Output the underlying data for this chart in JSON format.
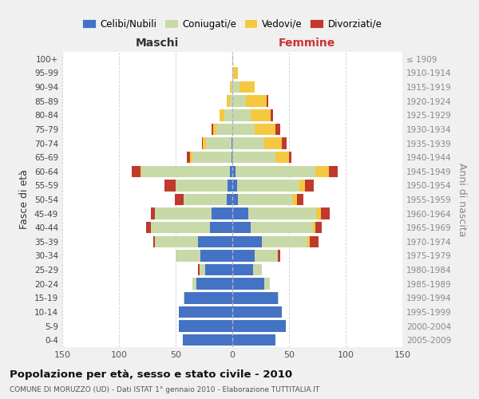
{
  "age_groups": [
    "0-4",
    "5-9",
    "10-14",
    "15-19",
    "20-24",
    "25-29",
    "30-34",
    "35-39",
    "40-44",
    "45-49",
    "50-54",
    "55-59",
    "60-64",
    "65-69",
    "70-74",
    "75-79",
    "80-84",
    "85-89",
    "90-94",
    "95-99",
    "100+"
  ],
  "birth_years": [
    "2005-2009",
    "2000-2004",
    "1995-1999",
    "1990-1994",
    "1985-1989",
    "1980-1984",
    "1975-1979",
    "1970-1974",
    "1965-1969",
    "1960-1964",
    "1955-1959",
    "1950-1954",
    "1945-1949",
    "1940-1944",
    "1935-1939",
    "1930-1934",
    "1925-1929",
    "1920-1924",
    "1915-1919",
    "1910-1914",
    "≤ 1909"
  ],
  "male": {
    "celibi": [
      44,
      47,
      47,
      42,
      32,
      24,
      28,
      30,
      20,
      18,
      5,
      4,
      2,
      1,
      1,
      0,
      0,
      0,
      0,
      0,
      0
    ],
    "coniugati": [
      0,
      0,
      0,
      1,
      3,
      5,
      22,
      38,
      52,
      50,
      38,
      46,
      78,
      34,
      22,
      14,
      7,
      2,
      1,
      0,
      0
    ],
    "vedovi": [
      0,
      0,
      0,
      0,
      0,
      0,
      0,
      0,
      0,
      0,
      0,
      0,
      1,
      2,
      3,
      3,
      4,
      3,
      1,
      0,
      0
    ],
    "divorziati": [
      0,
      0,
      0,
      0,
      0,
      1,
      0,
      2,
      4,
      4,
      8,
      10,
      8,
      3,
      1,
      1,
      0,
      0,
      0,
      0,
      0
    ]
  },
  "female": {
    "nubili": [
      38,
      47,
      44,
      40,
      28,
      18,
      20,
      26,
      16,
      14,
      5,
      4,
      3,
      0,
      0,
      0,
      0,
      0,
      0,
      0,
      0
    ],
    "coniugate": [
      0,
      0,
      0,
      1,
      5,
      8,
      20,
      40,
      55,
      60,
      48,
      55,
      70,
      38,
      28,
      20,
      16,
      12,
      6,
      1,
      0
    ],
    "vedove": [
      0,
      0,
      0,
      0,
      0,
      0,
      0,
      2,
      2,
      4,
      4,
      5,
      12,
      12,
      16,
      18,
      18,
      18,
      14,
      4,
      0
    ],
    "divorziate": [
      0,
      0,
      0,
      0,
      0,
      0,
      2,
      8,
      6,
      8,
      6,
      8,
      8,
      2,
      4,
      4,
      2,
      2,
      0,
      0,
      0
    ]
  },
  "colors": {
    "celibi": "#4472C4",
    "coniugati": "#c8d9a8",
    "vedovi": "#F5C842",
    "divorziati": "#C0392B"
  },
  "xlim": 150,
  "title": "Popolazione per età, sesso e stato civile - 2010",
  "subtitle": "COMUNE DI MORUZZO (UD) - Dati ISTAT 1° gennaio 2010 - Elaborazione TUTTITALIA.IT",
  "ylabel_left": "Fasce di età",
  "ylabel_right": "Anni di nascita",
  "xlabel_left": "Maschi",
  "xlabel_right": "Femmine",
  "bg_color": "#f0f0f0",
  "plot_bg": "#ffffff"
}
